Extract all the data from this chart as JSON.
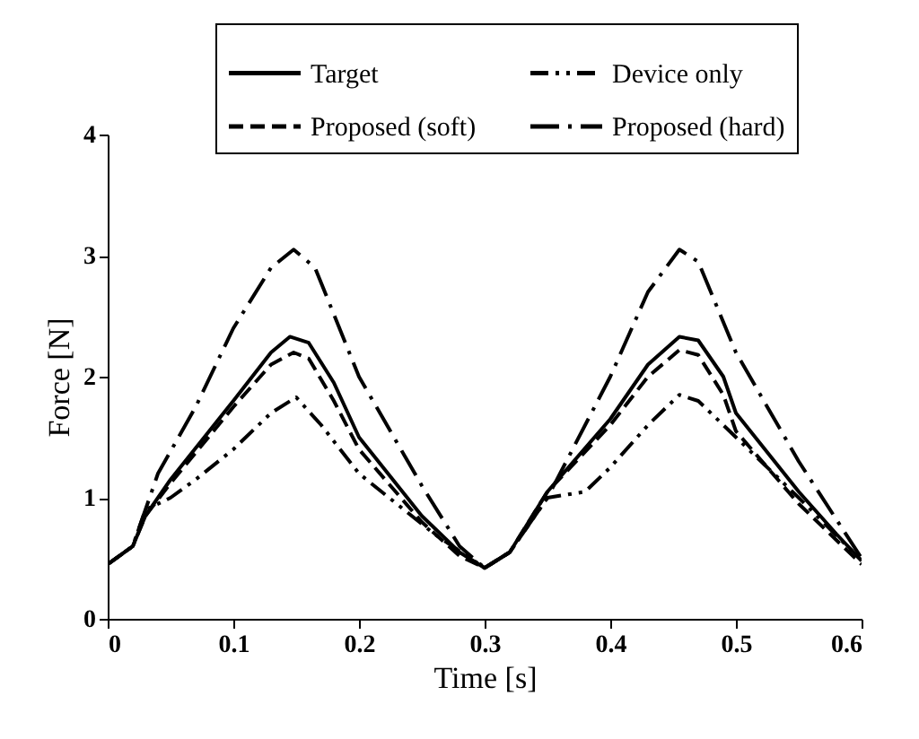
{
  "chart_data": {
    "type": "line",
    "xlabel": "Time [s]",
    "ylabel": "Force [N]",
    "xlim": [
      0,
      0.6
    ],
    "xticks": [
      0,
      0.1,
      0.2,
      0.3,
      0.4,
      0.5,
      0.6
    ],
    "ylim": [
      0,
      4
    ],
    "yticks": [
      0,
      1,
      2,
      3,
      4
    ],
    "grid": false,
    "legend": "top",
    "marker": "none",
    "series": [
      {
        "name": "Target",
        "color": "#000000",
        "line_style": "solid",
        "x": [
          0,
          0.02,
          0.03,
          0.05,
          0.1,
          0.13,
          0.145,
          0.16,
          0.18,
          0.2,
          0.25,
          0.28,
          0.3,
          0.32,
          0.35,
          0.4,
          0.43,
          0.455,
          0.47,
          0.49,
          0.5,
          0.55,
          0.58,
          0.6
        ],
        "values": [
          0.45,
          0.6,
          0.85,
          1.15,
          1.8,
          2.2,
          2.33,
          2.28,
          1.95,
          1.5,
          0.85,
          0.55,
          0.42,
          0.55,
          1.05,
          1.65,
          2.1,
          2.33,
          2.3,
          2.0,
          1.7,
          1.05,
          0.7,
          0.48
        ]
      },
      {
        "name": "Device only",
        "color": "#000000",
        "line_style": "dashdotdot",
        "x": [
          0,
          0.02,
          0.03,
          0.05,
          0.07,
          0.1,
          0.13,
          0.15,
          0.17,
          0.2,
          0.23,
          0.26,
          0.3,
          0.32,
          0.35,
          0.38,
          0.4,
          0.43,
          0.455,
          0.47,
          0.5,
          0.55,
          0.6
        ],
        "values": [
          0.45,
          0.6,
          0.9,
          1.0,
          1.15,
          1.4,
          1.7,
          1.83,
          1.6,
          1.2,
          0.95,
          0.7,
          0.42,
          0.55,
          1.0,
          1.05,
          1.25,
          1.6,
          1.85,
          1.8,
          1.5,
          1.0,
          0.48
        ]
      },
      {
        "name": "Proposed (soft)",
        "color": "#000000",
        "line_style": "dashed",
        "x": [
          0,
          0.02,
          0.03,
          0.05,
          0.1,
          0.13,
          0.148,
          0.16,
          0.18,
          0.2,
          0.25,
          0.28,
          0.3,
          0.32,
          0.35,
          0.4,
          0.43,
          0.455,
          0.47,
          0.49,
          0.5,
          0.55,
          0.58,
          0.6
        ],
        "values": [
          0.45,
          0.6,
          0.85,
          1.12,
          1.75,
          2.1,
          2.2,
          2.15,
          1.8,
          1.4,
          0.8,
          0.52,
          0.42,
          0.55,
          1.05,
          1.6,
          2.0,
          2.22,
          2.18,
          1.85,
          1.55,
          0.95,
          0.65,
          0.45
        ]
      },
      {
        "name": "Proposed (hard)",
        "color": "#000000",
        "line_style": "longdashdot",
        "x": [
          0,
          0.02,
          0.03,
          0.04,
          0.07,
          0.1,
          0.13,
          0.148,
          0.165,
          0.2,
          0.25,
          0.28,
          0.3,
          0.32,
          0.35,
          0.4,
          0.43,
          0.455,
          0.47,
          0.5,
          0.55,
          0.6
        ],
        "values": [
          0.45,
          0.6,
          0.9,
          1.2,
          1.75,
          2.4,
          2.9,
          3.05,
          2.9,
          2.0,
          1.1,
          0.6,
          0.42,
          0.55,
          1.0,
          2.0,
          2.7,
          3.05,
          2.95,
          2.2,
          1.3,
          0.5
        ]
      }
    ]
  }
}
